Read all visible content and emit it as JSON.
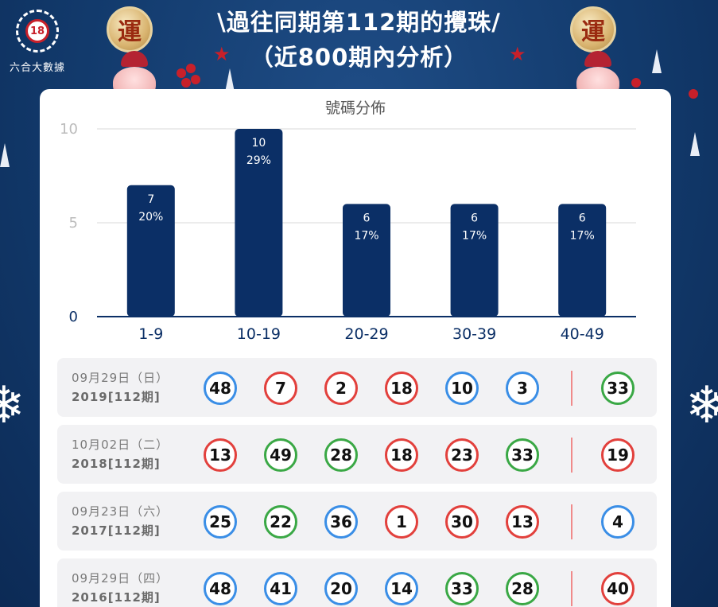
{
  "brand": {
    "logo_number": "18",
    "name": "六合大數據"
  },
  "header": {
    "title_line1": "\\過往同期第112期的攪珠/",
    "title_line2": "（近800期內分析）",
    "luck_char": "運"
  },
  "colors": {
    "navy": "#0b2f66",
    "red": "#e2403c",
    "blue": "#3a8ee6",
    "green": "#3aa845"
  },
  "chart_data": {
    "type": "bar",
    "title": "號碼分佈",
    "categories": [
      "1-9",
      "10-19",
      "20-29",
      "30-39",
      "40-49"
    ],
    "values": [
      7,
      10,
      6,
      6,
      6
    ],
    "percent_labels": [
      "20%",
      "29%",
      "17%",
      "17%",
      "17%"
    ],
    "y_ticks": [
      "10",
      "5",
      "0"
    ],
    "ylim": [
      0,
      10
    ],
    "grid": true
  },
  "draws": [
    {
      "date": "09月29日（日）",
      "period": "2019[112期]",
      "balls": [
        {
          "n": "48",
          "c": "blue"
        },
        {
          "n": "7",
          "c": "red"
        },
        {
          "n": "2",
          "c": "red"
        },
        {
          "n": "18",
          "c": "red"
        },
        {
          "n": "10",
          "c": "blue"
        },
        {
          "n": "3",
          "c": "blue"
        }
      ],
      "special": {
        "n": "33",
        "c": "green"
      }
    },
    {
      "date": "10月02日（二）",
      "period": "2018[112期]",
      "balls": [
        {
          "n": "13",
          "c": "red"
        },
        {
          "n": "49",
          "c": "green"
        },
        {
          "n": "28",
          "c": "green"
        },
        {
          "n": "18",
          "c": "red"
        },
        {
          "n": "23",
          "c": "red"
        },
        {
          "n": "33",
          "c": "green"
        }
      ],
      "special": {
        "n": "19",
        "c": "red"
      }
    },
    {
      "date": "09月23日（六）",
      "period": "2017[112期]",
      "balls": [
        {
          "n": "25",
          "c": "blue"
        },
        {
          "n": "22",
          "c": "green"
        },
        {
          "n": "36",
          "c": "blue"
        },
        {
          "n": "1",
          "c": "red"
        },
        {
          "n": "30",
          "c": "red"
        },
        {
          "n": "13",
          "c": "red"
        }
      ],
      "special": {
        "n": "4",
        "c": "blue"
      }
    },
    {
      "date": "09月29日（四）",
      "period": "2016[112期]",
      "balls": [
        {
          "n": "48",
          "c": "blue"
        },
        {
          "n": "41",
          "c": "blue"
        },
        {
          "n": "20",
          "c": "blue"
        },
        {
          "n": "14",
          "c": "blue"
        },
        {
          "n": "33",
          "c": "green"
        },
        {
          "n": "28",
          "c": "green"
        }
      ],
      "special": {
        "n": "40",
        "c": "red"
      }
    }
  ]
}
